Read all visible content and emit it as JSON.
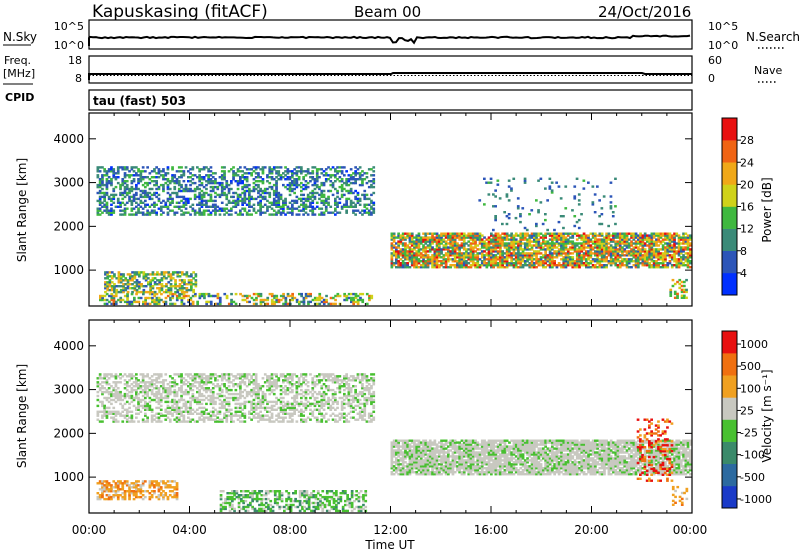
{
  "header": {
    "station": "Kapuskasing (fitACF)",
    "beam": "Beam 00",
    "date": "24/Oct/2016"
  },
  "strip_panels": {
    "nsky": {
      "left_label": "N.Sky",
      "left_ticks": [
        "10^5",
        "10^0"
      ],
      "right_label": "N.Search",
      "right_ticks": [
        "10^5",
        "10^0"
      ]
    },
    "freq": {
      "left_label_1": "Freq.",
      "left_label_2": "[MHz]",
      "left_ticks": [
        "18",
        "8"
      ],
      "right_label": "Nave",
      "right_ticks": [
        "60",
        "0"
      ]
    },
    "cpid": {
      "label": "CPID",
      "text": "tau (fast) 503"
    }
  },
  "chart_data": [
    {
      "type": "heatmap",
      "panel": "power",
      "ylabel": "Slant Range [km]",
      "xlabel": "Time UT",
      "x_tick_labels": [
        "00:00",
        "04:00",
        "08:00",
        "12:00",
        "16:00",
        "20:00",
        "00:00"
      ],
      "x_range_hours": [
        0,
        24
      ],
      "y_ticks": [
        1000,
        2000,
        3000,
        4000
      ],
      "ylim": [
        180,
        4590
      ],
      "colorbar": {
        "label": "Power [dB]",
        "tick_labels": [
          "4",
          "8",
          "12",
          "16",
          "20",
          "24",
          "28"
        ],
        "range": [
          0,
          30
        ],
        "colors": [
          "#0030ff",
          "#2c55b8",
          "#3a8a78",
          "#3fb83f",
          "#cfd21a",
          "#f0a818",
          "#f06414",
          "#e81010"
        ]
      },
      "bands": [
        {
          "t0": 0.4,
          "t1": 11.2,
          "r_lo": 210,
          "r_hi": 470,
          "density": 0.45,
          "v_lo": 4,
          "v_hi": 24
        },
        {
          "t0": 0.6,
          "t1": 4.2,
          "r_lo": 480,
          "r_hi": 950,
          "density": 0.6,
          "v_lo": 6,
          "v_hi": 22
        },
        {
          "t0": 0.3,
          "t1": 11.3,
          "r_lo": 2250,
          "r_hi": 3350,
          "density": 0.45,
          "v_lo": 3,
          "v_hi": 14
        },
        {
          "t0": 12.0,
          "t1": 23.9,
          "r_lo": 1050,
          "r_hi": 1850,
          "density": 0.8,
          "v_lo": 6,
          "v_hi": 28
        },
        {
          "t0": 15.5,
          "t1": 21.0,
          "r_lo": 1900,
          "r_hi": 3100,
          "density": 0.06,
          "v_lo": 4,
          "v_hi": 12
        },
        {
          "t0": 23.1,
          "t1": 23.8,
          "r_lo": 350,
          "r_hi": 800,
          "density": 0.35,
          "v_lo": 10,
          "v_hi": 26
        }
      ]
    },
    {
      "type": "heatmap",
      "panel": "velocity",
      "ylabel": "Slant Range [km]",
      "xlabel": "Time UT",
      "x_tick_labels": [
        "00:00",
        "04:00",
        "08:00",
        "12:00",
        "16:00",
        "20:00",
        "00:00"
      ],
      "x_range_hours": [
        0,
        24
      ],
      "y_ticks": [
        1000,
        2000,
        3000,
        4000
      ],
      "ylim": [
        180,
        4590
      ],
      "colorbar": {
        "label": "Velocity [m s⁻¹]",
        "tick_labels": [
          "1000",
          "500",
          "100",
          "25",
          "-25",
          "-100",
          "-500",
          "-1000"
        ],
        "colors": [
          "#1a3ac8",
          "#2c6aa0",
          "#3a8a6a",
          "#48c030",
          "#c8c8c0",
          "#f0a020",
          "#f07010",
          "#e81010"
        ]
      },
      "bands": [
        {
          "t0": 0.3,
          "t1": 11.3,
          "r_lo": 2250,
          "r_hi": 3350,
          "density": 0.5,
          "class": "gray"
        },
        {
          "t0": 12.0,
          "t1": 23.9,
          "r_lo": 1050,
          "r_hi": 1850,
          "density": 0.85,
          "class": "gray"
        },
        {
          "t0": 5.2,
          "t1": 11.0,
          "r_lo": 210,
          "r_hi": 700,
          "density": 0.5,
          "class": "green"
        },
        {
          "t0": 0.3,
          "t1": 3.5,
          "r_lo": 480,
          "r_hi": 900,
          "density": 0.55,
          "class": "orange"
        },
        {
          "t0": 21.8,
          "t1": 23.2,
          "r_lo": 900,
          "r_hi": 2300,
          "density": 0.3,
          "class": "red"
        },
        {
          "t0": 23.2,
          "t1": 23.8,
          "r_lo": 350,
          "r_hi": 800,
          "density": 0.35,
          "class": "orange"
        }
      ]
    }
  ],
  "colors": {
    "frame": "#000000",
    "background": "#ffffff"
  }
}
